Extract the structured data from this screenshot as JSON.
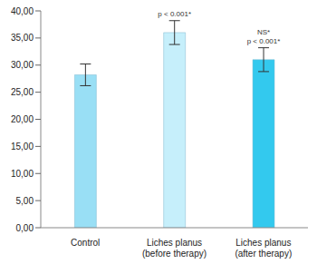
{
  "chart_data": {
    "type": "bar",
    "categories": [
      "Control",
      "Liches planus (before therapy)",
      "Liches planus (after therapy)"
    ],
    "values": [
      28.2,
      36.0,
      31.0
    ],
    "errors": [
      2.0,
      2.2,
      2.2
    ],
    "colors": [
      "#99dff5",
      "#c6effb",
      "#33c9ee"
    ],
    "ylim": [
      0,
      40
    ],
    "yticks": [
      {
        "value": 0,
        "label": "0,00"
      },
      {
        "value": 5,
        "label": "5,00"
      },
      {
        "value": 10,
        "label": "10,00"
      },
      {
        "value": 15,
        "label": "15,00"
      },
      {
        "value": 20,
        "label": "20,00"
      },
      {
        "value": 25,
        "label": "25,00"
      },
      {
        "value": 30,
        "label": "30,00"
      },
      {
        "value": 35,
        "label": "35,00"
      },
      {
        "value": 40,
        "label": "40,00"
      }
    ],
    "grid": false,
    "annotations": [
      {
        "x": "Liches planus (before therapy)",
        "text": "p < 0.001*"
      },
      {
        "x": "Liches planus (after therapy)",
        "text": "NS*"
      },
      {
        "x": "Liches planus (after therapy)",
        "text": "p < 0.001*"
      }
    ]
  }
}
